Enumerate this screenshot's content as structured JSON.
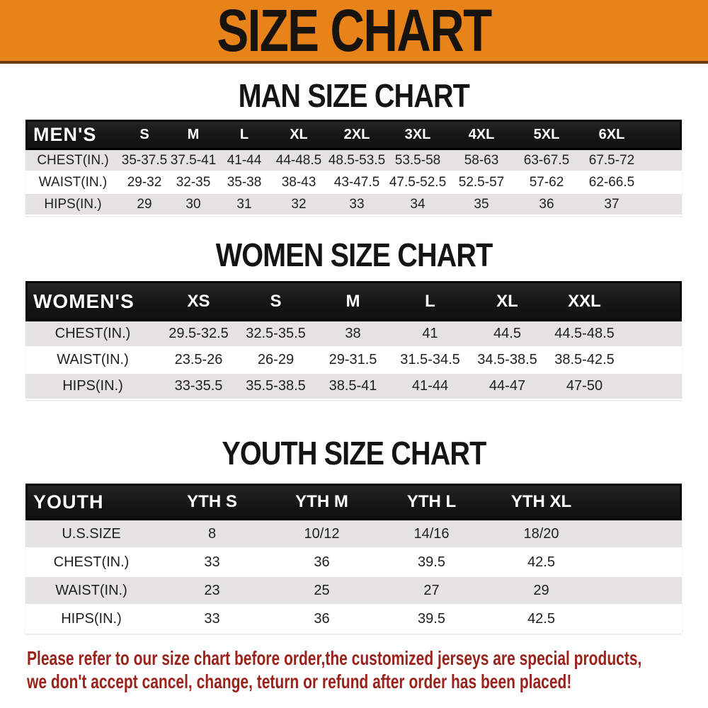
{
  "banner": {
    "title": "SIZE CHART"
  },
  "colors": {
    "banner_orange": "#E8831A",
    "banner_border": "#6e3a0c",
    "bar_black": "#161614",
    "row_gray": "#E4E3E1",
    "disclaimer_red": "#9A221C"
  },
  "tables": [
    {
      "title": "MAN SIZE CHART",
      "group_label": "MEN'S",
      "sizes": [
        "S",
        "M",
        "L",
        "XL",
        "2XL",
        "3XL",
        "4XL",
        "5XL",
        "6XL"
      ],
      "rows": [
        {
          "label": "CHEST(IN.)",
          "values": [
            "35-37.5",
            "37.5-41",
            "41-44",
            "44-48.5",
            "48.5-53.5",
            "53.5-58",
            "58-63",
            "63-67.5",
            "67.5-72"
          ]
        },
        {
          "label": "WAIST(IN.)",
          "values": [
            "29-32",
            "32-35",
            "35-38",
            "38-43",
            "43-47.5",
            "47.5-52.5",
            "52.5-57",
            "57-62",
            "62-66.5"
          ]
        },
        {
          "label": "HIPS(IN.)",
          "values": [
            "29",
            "30",
            "31",
            "32",
            "33",
            "34",
            "35",
            "36",
            "37"
          ]
        }
      ]
    },
    {
      "title": "WOMEN SIZE CHART",
      "group_label": "WOMEN'S",
      "sizes": [
        "XS",
        "S",
        "M",
        "L",
        "XL",
        "XXL"
      ],
      "rows": [
        {
          "label": "CHEST(IN.)",
          "values": [
            "29.5-32.5",
            "32.5-35.5",
            "38",
            "41",
            "44.5",
            "44.5-48.5"
          ]
        },
        {
          "label": "WAIST(IN.)",
          "values": [
            "23.5-26",
            "26-29",
            "29-31.5",
            "31.5-34.5",
            "34.5-38.5",
            "38.5-42.5"
          ]
        },
        {
          "label": "HIPS(IN.)",
          "values": [
            "33-35.5",
            "35.5-38.5",
            "38.5-41",
            "41-44",
            "44-47",
            "47-50"
          ]
        }
      ]
    },
    {
      "title": "YOUTH SIZE CHART",
      "group_label": "YOUTH",
      "sizes": [
        "YTH S",
        "YTH M",
        "YTH L",
        "YTH XL"
      ],
      "rows": [
        {
          "label": "U.S.SIZE",
          "values": [
            "8",
            "10/12",
            "14/16",
            "18/20"
          ]
        },
        {
          "label": "CHEST(IN.)",
          "values": [
            "33",
            "36",
            "39.5",
            "42.5"
          ]
        },
        {
          "label": "WAIST(IN.)",
          "values": [
            "23",
            "25",
            "27",
            "29"
          ]
        },
        {
          "label": "HIPS(IN.)",
          "values": [
            "33",
            "36",
            "39.5",
            "42.5"
          ]
        }
      ]
    }
  ],
  "disclaimer": {
    "line1": "Please refer to our size chart before order,the customized jerseys are special products,",
    "line2": "we don't accept cancel, change, teturn or refund after order has been placed!"
  }
}
